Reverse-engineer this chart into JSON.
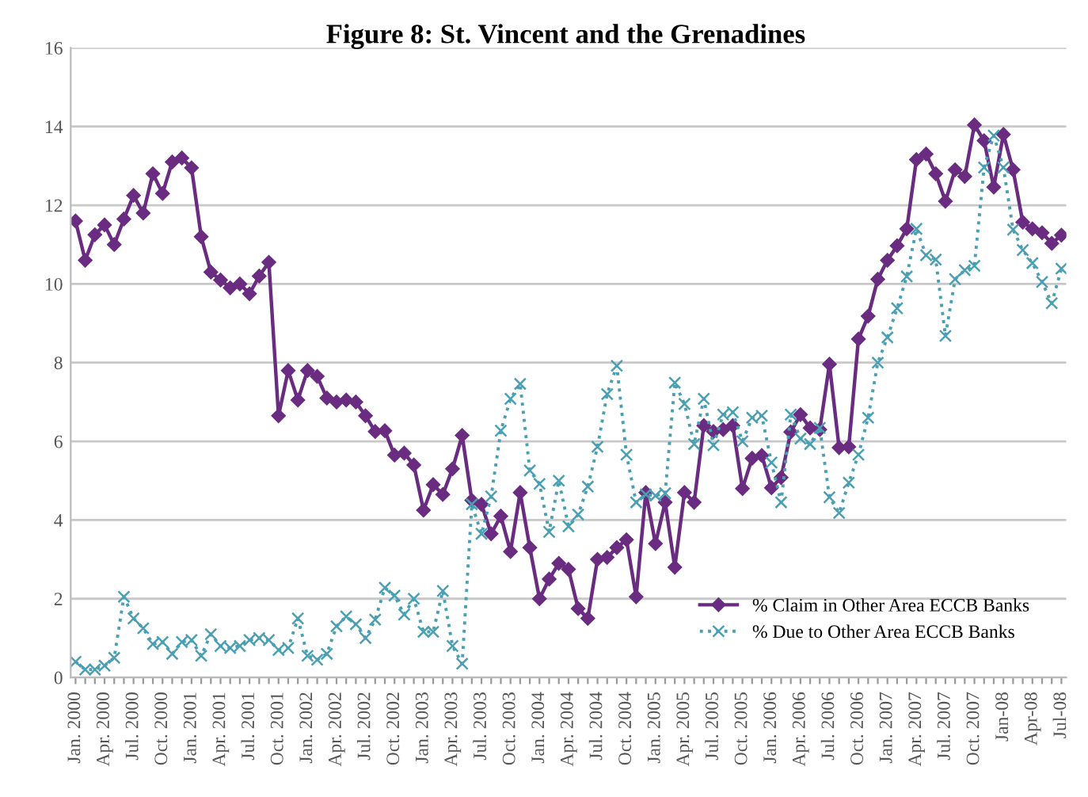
{
  "chart_data": {
    "type": "line",
    "title": "Figure 8: St. Vincent and the Grenadines",
    "categories": [
      "Jan. 2000",
      null,
      null,
      "Apr. 2000",
      null,
      null,
      "Jul. 2000",
      null,
      null,
      "Oct. 2000",
      null,
      null,
      "Jan. 2001",
      null,
      null,
      "Apr. 2001",
      null,
      null,
      "Jul. 2001",
      null,
      null,
      "Oct. 2001",
      null,
      null,
      "Jan. 2002",
      null,
      null,
      "Apr. 2002",
      null,
      null,
      "Jul. 2002",
      null,
      null,
      "Oct. 2002",
      null,
      null,
      "Jan. 2003",
      null,
      null,
      "Apr. 2003",
      null,
      null,
      "Jul. 2003",
      null,
      null,
      "Oct. 2003",
      null,
      null,
      "Jan. 2004",
      null,
      null,
      "Apr. 2004",
      null,
      null,
      "Jul. 2004",
      null,
      null,
      "Oct. 2004",
      null,
      null,
      "Jan. 2005",
      null,
      null,
      "Apr. 2005",
      null,
      null,
      "Jul. 2005",
      null,
      null,
      "Oct. 2005",
      null,
      null,
      "Jan. 2006",
      null,
      null,
      "Apr. 2006",
      null,
      null,
      "Jul. 2006",
      null,
      null,
      "Oct. 2006",
      null,
      null,
      "Jan. 2007",
      null,
      null,
      "Apr. 2007",
      null,
      null,
      "Jul. 2007",
      null,
      null,
      "Oct. 2007",
      null,
      null,
      "Jan-08",
      null,
      null,
      "Apr-08",
      null,
      null,
      "Jul-08"
    ],
    "series": [
      {
        "name": "% Claim in Other Area ECCB Banks",
        "color": "#6a2c80",
        "marker": "diamond",
        "line_style": "solid",
        "values": [
          11.6,
          10.6,
          11.25,
          11.5,
          11.0,
          11.65,
          12.25,
          11.8,
          12.8,
          12.3,
          13.1,
          13.2,
          12.95,
          11.2,
          10.3,
          10.1,
          9.9,
          10.0,
          9.75,
          10.2,
          10.55,
          6.65,
          7.8,
          7.05,
          7.8,
          7.65,
          7.1,
          7.0,
          7.05,
          7.0,
          6.65,
          6.25,
          6.27,
          5.65,
          5.7,
          5.4,
          4.25,
          4.9,
          4.65,
          5.3,
          6.15,
          4.5,
          4.4,
          3.65,
          4.1,
          3.2,
          4.7,
          3.3,
          2.0,
          2.5,
          2.9,
          2.75,
          1.75,
          1.5,
          3.0,
          3.05,
          3.3,
          3.5,
          2.05,
          4.7,
          3.4,
          4.45,
          2.8,
          4.7,
          4.45,
          6.4,
          6.25,
          6.3,
          6.4,
          4.8,
          5.57,
          5.64,
          4.82,
          5.08,
          6.24,
          6.68,
          6.34,
          6.3,
          7.96,
          5.84,
          5.86,
          8.6,
          9.18,
          10.12,
          10.6,
          10.97,
          11.4,
          13.16,
          13.3,
          12.8,
          12.1,
          12.9,
          12.73,
          14.04,
          13.64,
          12.46,
          13.8,
          12.9,
          11.57,
          11.4,
          11.3,
          11.03,
          11.24
        ]
      },
      {
        "name": "% Due to Other Area ECCB Banks",
        "color": "#4aa0b2",
        "marker": "cross",
        "line_style": "dotted",
        "values": [
          0.4,
          0.2,
          0.2,
          0.3,
          0.5,
          2.05,
          1.5,
          1.25,
          0.85,
          0.9,
          0.6,
          0.9,
          0.95,
          0.55,
          1.1,
          0.8,
          0.75,
          0.8,
          0.95,
          1.0,
          0.95,
          0.7,
          0.75,
          1.5,
          0.55,
          0.45,
          0.6,
          1.3,
          1.55,
          1.35,
          1.0,
          1.47,
          2.28,
          2.08,
          1.6,
          2.0,
          1.16,
          1.16,
          2.2,
          0.8,
          0.35,
          4.4,
          3.65,
          4.6,
          6.27,
          7.08,
          7.46,
          5.26,
          4.92,
          3.7,
          5.0,
          3.84,
          4.14,
          4.85,
          5.86,
          7.2,
          7.92,
          5.66,
          4.45,
          4.65,
          4.62,
          4.68,
          7.49,
          6.95,
          5.93,
          7.08,
          5.9,
          6.68,
          6.74,
          6.0,
          6.6,
          6.65,
          5.46,
          4.45,
          6.68,
          6.07,
          5.93,
          6.34,
          4.58,
          4.18,
          4.95,
          5.66,
          6.6,
          8.0,
          8.64,
          9.38,
          10.19,
          11.4,
          10.73,
          10.62,
          8.68,
          10.12,
          10.35,
          10.46,
          12.96,
          13.77,
          12.96,
          11.38,
          10.86,
          10.53,
          10.05,
          9.51,
          10.39
        ]
      }
    ],
    "ylim": [
      0,
      16
    ],
    "yticks": [
      0,
      2,
      4,
      6,
      8,
      10,
      12,
      14,
      16
    ],
    "grid": "y",
    "legend": "bottom right"
  }
}
